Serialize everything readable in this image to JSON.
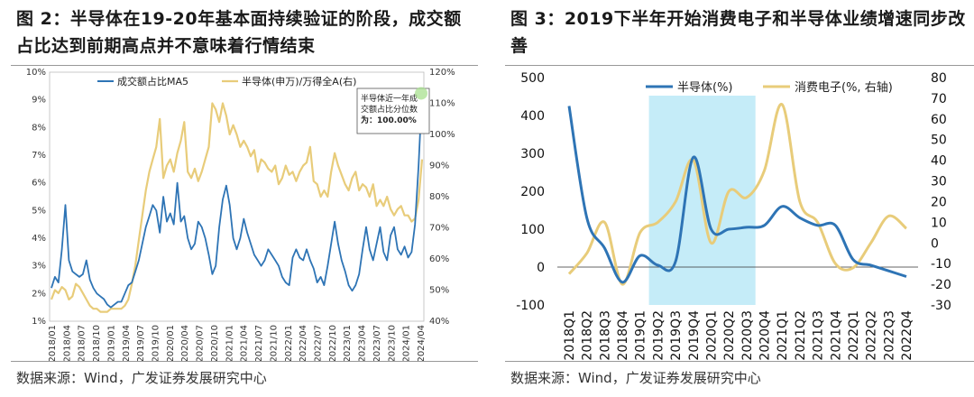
{
  "left": {
    "title": "图 2：半导体在19-20年基本面持续验证的阶段，成交额占比达到前期高点并不意味着行情结束",
    "source": "数据来源：Wind，广发证券发展研究中心",
    "annotation_lines": [
      "半导体近一年成",
      "交额占比分位数",
      "为：100.00%"
    ]
  },
  "right": {
    "title": "图 3：2019下半年开始消费电子和半导体业绩增速同步改善",
    "source": "数据来源：Wind，广发证券发展研究中心"
  },
  "colors": {
    "blue_series": "#2e74b5",
    "gold_series": "#e8cc7a",
    "highlight_band": "#c5ecf8",
    "marker": "#a8e08f"
  },
  "chart_data": [
    {
      "type": "line",
      "x_tick_labels": [
        "2018/01",
        "2018/04",
        "2018/07",
        "2018/10",
        "2019/01",
        "2019/04",
        "2019/07",
        "2019/10",
        "2020/01",
        "2020/04",
        "2020/07",
        "2020/10",
        "2021/01",
        "2021/04",
        "2021/07",
        "2021/10",
        "2022/01",
        "2022/04",
        "2022/07",
        "2022/10",
        "2023/01",
        "2023/04",
        "2023/07",
        "2023/10",
        "2024/01",
        "2024/04"
      ],
      "y_left_ticks": [
        "1%",
        "2%",
        "3%",
        "4%",
        "5%",
        "6%",
        "7%",
        "8%",
        "9%",
        "10%"
      ],
      "y_right_ticks": [
        "40%",
        "50%",
        "60%",
        "70%",
        "80%",
        "90%",
        "100%",
        "110%",
        "120%"
      ],
      "ylim_left": [
        1,
        10
      ],
      "ylim_right": [
        40,
        120
      ],
      "legend_placement": "top",
      "grid": false,
      "series": [
        {
          "name": "成交额占比MA5",
          "axis": "left",
          "values": [
            2.2,
            2.6,
            2.4,
            3.6,
            5.2,
            3.2,
            2.8,
            2.7,
            2.6,
            2.7,
            3.2,
            2.5,
            2.2,
            2.0,
            1.9,
            1.8,
            1.6,
            1.5,
            1.6,
            1.7,
            1.7,
            2.0,
            2.3,
            2.4,
            2.8,
            3.2,
            3.8,
            4.4,
            4.8,
            5.2,
            5.0,
            4.2,
            5.5,
            4.6,
            4.9,
            4.5,
            6.0,
            4.6,
            4.8,
            4.0,
            3.6,
            3.8,
            4.6,
            4.4,
            4.0,
            3.4,
            2.7,
            3.0,
            4.4,
            5.4,
            5.9,
            5.2,
            4.0,
            3.6,
            4.0,
            4.7,
            4.2,
            3.8,
            3.4,
            3.2,
            3.0,
            3.2,
            3.6,
            3.4,
            3.2,
            3.0,
            2.6,
            2.4,
            2.3,
            3.3,
            3.6,
            3.3,
            3.2,
            3.6,
            3.2,
            2.9,
            2.4,
            2.6,
            2.3,
            3.0,
            3.8,
            4.6,
            3.8,
            3.2,
            2.8,
            2.3,
            2.1,
            2.3,
            2.7,
            3.6,
            4.4,
            3.6,
            3.2,
            3.8,
            4.4,
            3.5,
            3.2,
            4.1,
            4.4,
            3.6,
            3.4,
            3.7,
            3.3,
            3.5,
            4.5,
            6.6,
            9.3
          ]
        },
        {
          "name": "半导体(申万)/万得全A(右)",
          "axis": "right",
          "values": [
            47,
            50,
            49,
            51,
            50,
            47,
            48,
            52,
            51,
            49,
            47,
            45,
            44,
            44,
            43,
            43,
            43,
            44,
            44,
            44,
            44,
            45,
            47,
            52,
            58,
            66,
            74,
            82,
            88,
            92,
            96,
            105,
            86,
            90,
            92,
            88,
            94,
            98,
            104,
            88,
            86,
            89,
            85,
            88,
            92,
            96,
            110,
            108,
            104,
            110,
            106,
            100,
            103,
            100,
            96,
            98,
            96,
            93,
            95,
            88,
            92,
            91,
            89,
            88,
            90,
            84,
            86,
            90,
            87,
            88,
            85,
            88,
            90,
            91,
            96,
            85,
            84,
            80,
            82,
            80,
            88,
            94,
            90,
            87,
            84,
            82,
            86,
            88,
            82,
            84,
            83,
            80,
            84,
            77,
            79,
            77,
            80,
            76,
            74,
            76,
            77,
            74,
            74,
            72,
            73,
            79,
            92
          ]
        }
      ]
    },
    {
      "type": "line",
      "categories": [
        "2018Q1",
        "2018Q2",
        "2018Q3",
        "2018Q4",
        "2019Q1",
        "2019Q2",
        "2019Q3",
        "2019Q4",
        "2020Q1",
        "2020Q2",
        "2020Q3",
        "2020Q4",
        "2021Q1",
        "2021Q2",
        "2021Q3",
        "2021Q4",
        "2022Q1",
        "2022Q2",
        "2022Q3",
        "2022Q4"
      ],
      "y_left_ticks": [
        "-100",
        "0",
        "100",
        "200",
        "300",
        "400",
        "500"
      ],
      "y_right_ticks": [
        "-30",
        "-20",
        "-10",
        "0",
        "10",
        "20",
        "30",
        "40",
        "50",
        "60",
        "70",
        "80"
      ],
      "ylim_left": [
        -100,
        500
      ],
      "ylim_right": [
        -30,
        80
      ],
      "legend_placement": "top",
      "grid": false,
      "highlight_range": [
        "2019Q2",
        "2020Q3"
      ],
      "series": [
        {
          "name": "半导体(%)",
          "axis": "left",
          "values": [
            425,
            130,
            50,
            -40,
            30,
            5,
            15,
            290,
            100,
            100,
            105,
            110,
            160,
            130,
            110,
            110,
            20,
            5,
            -10,
            -25
          ]
        },
        {
          "name": "消费电子(%, 右轴)",
          "axis": "right",
          "values": [
            -15,
            -5,
            10,
            -20,
            5,
            10,
            20,
            40,
            0,
            25,
            22,
            35,
            67,
            20,
            10,
            -10,
            -12,
            0,
            13,
            7
          ]
        }
      ]
    }
  ]
}
